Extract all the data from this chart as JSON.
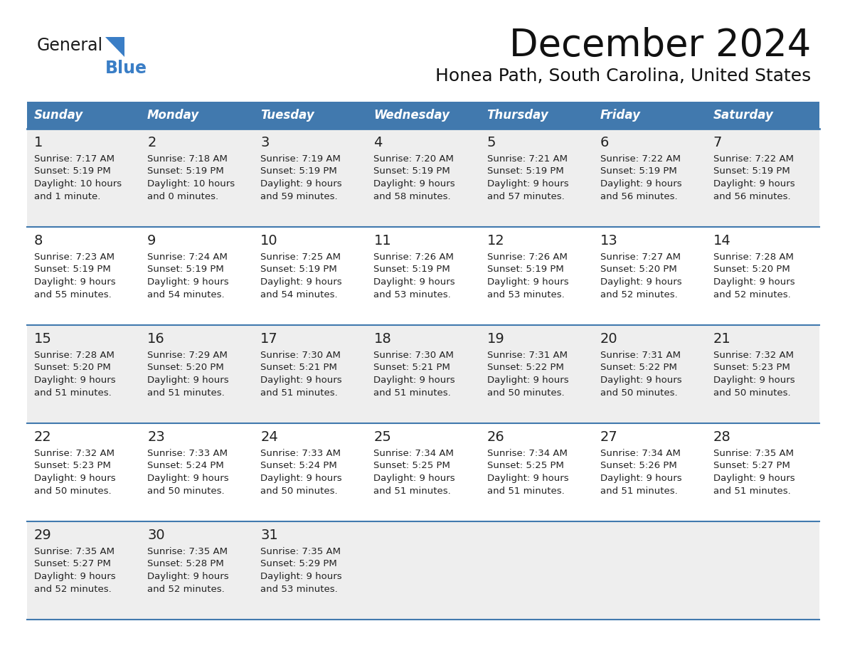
{
  "title": "December 2024",
  "subtitle": "Honea Path, South Carolina, United States",
  "header_color": "#4179AE",
  "header_text_color": "#FFFFFF",
  "day_names": [
    "Sunday",
    "Monday",
    "Tuesday",
    "Wednesday",
    "Thursday",
    "Friday",
    "Saturday"
  ],
  "bg_color": "#FFFFFF",
  "cell_bg_odd": "#EEEEEE",
  "cell_bg_even": "#FFFFFF",
  "line_color": "#4179AE",
  "text_color": "#222222",
  "logo_general_color": "#1a1a1a",
  "logo_blue_color": "#3A7EC6",
  "logo_triangle_color": "#3A7EC6",
  "days": [
    {
      "day": 1,
      "col": 0,
      "row": 0,
      "sunrise": "7:17 AM",
      "sunset": "5:19 PM",
      "daylight": "10 hours\nand 1 minute."
    },
    {
      "day": 2,
      "col": 1,
      "row": 0,
      "sunrise": "7:18 AM",
      "sunset": "5:19 PM",
      "daylight": "10 hours\nand 0 minutes."
    },
    {
      "day": 3,
      "col": 2,
      "row": 0,
      "sunrise": "7:19 AM",
      "sunset": "5:19 PM",
      "daylight": "9 hours\nand 59 minutes."
    },
    {
      "day": 4,
      "col": 3,
      "row": 0,
      "sunrise": "7:20 AM",
      "sunset": "5:19 PM",
      "daylight": "9 hours\nand 58 minutes."
    },
    {
      "day": 5,
      "col": 4,
      "row": 0,
      "sunrise": "7:21 AM",
      "sunset": "5:19 PM",
      "daylight": "9 hours\nand 57 minutes."
    },
    {
      "day": 6,
      "col": 5,
      "row": 0,
      "sunrise": "7:22 AM",
      "sunset": "5:19 PM",
      "daylight": "9 hours\nand 56 minutes."
    },
    {
      "day": 7,
      "col": 6,
      "row": 0,
      "sunrise": "7:22 AM",
      "sunset": "5:19 PM",
      "daylight": "9 hours\nand 56 minutes."
    },
    {
      "day": 8,
      "col": 0,
      "row": 1,
      "sunrise": "7:23 AM",
      "sunset": "5:19 PM",
      "daylight": "9 hours\nand 55 minutes."
    },
    {
      "day": 9,
      "col": 1,
      "row": 1,
      "sunrise": "7:24 AM",
      "sunset": "5:19 PM",
      "daylight": "9 hours\nand 54 minutes."
    },
    {
      "day": 10,
      "col": 2,
      "row": 1,
      "sunrise": "7:25 AM",
      "sunset": "5:19 PM",
      "daylight": "9 hours\nand 54 minutes."
    },
    {
      "day": 11,
      "col": 3,
      "row": 1,
      "sunrise": "7:26 AM",
      "sunset": "5:19 PM",
      "daylight": "9 hours\nand 53 minutes."
    },
    {
      "day": 12,
      "col": 4,
      "row": 1,
      "sunrise": "7:26 AM",
      "sunset": "5:19 PM",
      "daylight": "9 hours\nand 53 minutes."
    },
    {
      "day": 13,
      "col": 5,
      "row": 1,
      "sunrise": "7:27 AM",
      "sunset": "5:20 PM",
      "daylight": "9 hours\nand 52 minutes."
    },
    {
      "day": 14,
      "col": 6,
      "row": 1,
      "sunrise": "7:28 AM",
      "sunset": "5:20 PM",
      "daylight": "9 hours\nand 52 minutes."
    },
    {
      "day": 15,
      "col": 0,
      "row": 2,
      "sunrise": "7:28 AM",
      "sunset": "5:20 PM",
      "daylight": "9 hours\nand 51 minutes."
    },
    {
      "day": 16,
      "col": 1,
      "row": 2,
      "sunrise": "7:29 AM",
      "sunset": "5:20 PM",
      "daylight": "9 hours\nand 51 minutes."
    },
    {
      "day": 17,
      "col": 2,
      "row": 2,
      "sunrise": "7:30 AM",
      "sunset": "5:21 PM",
      "daylight": "9 hours\nand 51 minutes."
    },
    {
      "day": 18,
      "col": 3,
      "row": 2,
      "sunrise": "7:30 AM",
      "sunset": "5:21 PM",
      "daylight": "9 hours\nand 51 minutes."
    },
    {
      "day": 19,
      "col": 4,
      "row": 2,
      "sunrise": "7:31 AM",
      "sunset": "5:22 PM",
      "daylight": "9 hours\nand 50 minutes."
    },
    {
      "day": 20,
      "col": 5,
      "row": 2,
      "sunrise": "7:31 AM",
      "sunset": "5:22 PM",
      "daylight": "9 hours\nand 50 minutes."
    },
    {
      "day": 21,
      "col": 6,
      "row": 2,
      "sunrise": "7:32 AM",
      "sunset": "5:23 PM",
      "daylight": "9 hours\nand 50 minutes."
    },
    {
      "day": 22,
      "col": 0,
      "row": 3,
      "sunrise": "7:32 AM",
      "sunset": "5:23 PM",
      "daylight": "9 hours\nand 50 minutes."
    },
    {
      "day": 23,
      "col": 1,
      "row": 3,
      "sunrise": "7:33 AM",
      "sunset": "5:24 PM",
      "daylight": "9 hours\nand 50 minutes."
    },
    {
      "day": 24,
      "col": 2,
      "row": 3,
      "sunrise": "7:33 AM",
      "sunset": "5:24 PM",
      "daylight": "9 hours\nand 50 minutes."
    },
    {
      "day": 25,
      "col": 3,
      "row": 3,
      "sunrise": "7:34 AM",
      "sunset": "5:25 PM",
      "daylight": "9 hours\nand 51 minutes."
    },
    {
      "day": 26,
      "col": 4,
      "row": 3,
      "sunrise": "7:34 AM",
      "sunset": "5:25 PM",
      "daylight": "9 hours\nand 51 minutes."
    },
    {
      "day": 27,
      "col": 5,
      "row": 3,
      "sunrise": "7:34 AM",
      "sunset": "5:26 PM",
      "daylight": "9 hours\nand 51 minutes."
    },
    {
      "day": 28,
      "col": 6,
      "row": 3,
      "sunrise": "7:35 AM",
      "sunset": "5:27 PM",
      "daylight": "9 hours\nand 51 minutes."
    },
    {
      "day": 29,
      "col": 0,
      "row": 4,
      "sunrise": "7:35 AM",
      "sunset": "5:27 PM",
      "daylight": "9 hours\nand 52 minutes."
    },
    {
      "day": 30,
      "col": 1,
      "row": 4,
      "sunrise": "7:35 AM",
      "sunset": "5:28 PM",
      "daylight": "9 hours\nand 52 minutes."
    },
    {
      "day": 31,
      "col": 2,
      "row": 4,
      "sunrise": "7:35 AM",
      "sunset": "5:29 PM",
      "daylight": "9 hours\nand 53 minutes."
    }
  ]
}
